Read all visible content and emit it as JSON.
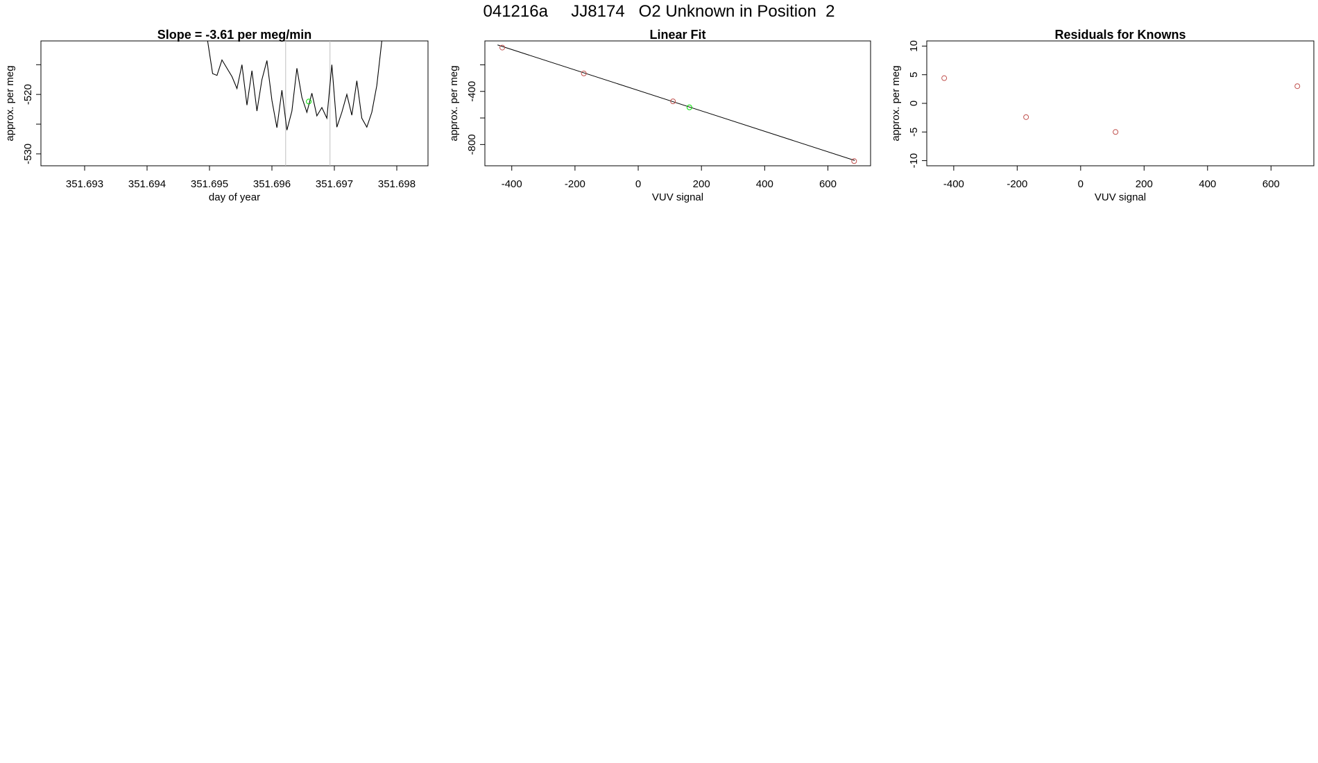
{
  "title": "041216a     JJ8174   O2 Unknown in Position  2",
  "colors": {
    "line": "#000000",
    "frame": "#000000",
    "known_point": "#c0504d",
    "unknown_point": "#00e000",
    "vline": "#bebebe",
    "fit_line": "#000000"
  },
  "chart_data": [
    {
      "type": "line",
      "title": "Slope =  -3.61  per meg/min",
      "xlabel": "day of year",
      "ylabel": "approx. per meg",
      "xlim": [
        351.6923,
        351.6985
      ],
      "ylim": [
        -532,
        -511
      ],
      "xticks": [
        351.693,
        351.694,
        351.695,
        351.696,
        351.697,
        351.698
      ],
      "xtick_labels": [
        "351.693",
        "351.694",
        "351.695",
        "351.696",
        "351.697",
        "351.698"
      ],
      "yticks": [
        -530,
        -525,
        -520,
        -515
      ],
      "ytick_labels": [
        "-530",
        "",
        "-520",
        ""
      ],
      "vlines": [
        351.69622,
        351.69693
      ],
      "series": [
        {
          "x": [
            351.69497,
            351.69505,
            351.69512,
            351.6952,
            351.69528,
            351.69536,
            351.69544,
            351.69552,
            351.6956,
            351.69568,
            351.69576,
            351.69584,
            351.69592,
            351.696,
            351.69608,
            351.69616,
            351.69624,
            351.69632,
            351.6964,
            351.69648,
            351.69656,
            351.69664,
            351.69672,
            351.6968,
            351.69688,
            351.69696,
            351.69704,
            351.69712,
            351.6972,
            351.69728,
            351.69736,
            351.69744,
            351.69752,
            351.6976,
            351.69768,
            351.69776
          ],
          "y": [
            -511,
            -516.5,
            -516.8,
            -514.2,
            -515.6,
            -517.0,
            -519.0,
            -515.0,
            -521.8,
            -516.0,
            -522.8,
            -517.5,
            -514.3,
            -521.0,
            -525.6,
            -519.3,
            -526.0,
            -522.8,
            -515.6,
            -520.5,
            -523.0,
            -519.8,
            -523.6,
            -522.2,
            -524.0,
            -515.0,
            -525.5,
            -523.0,
            -520.0,
            -523.5,
            -517.7,
            -524.0,
            -525.5,
            -523.0,
            -518.5,
            -511
          ]
        }
      ],
      "points": [
        {
          "x": 351.69659,
          "y": -521.2,
          "kind": "unknown"
        }
      ]
    },
    {
      "type": "scatter",
      "title": "Linear Fit",
      "xlabel": "VUV signal",
      "ylabel": "approx. per meg",
      "xlim": [
        -485,
        735
      ],
      "ylim": [
        -960,
        -20
      ],
      "xticks": [
        -400,
        -200,
        0,
        200,
        400,
        600
      ],
      "xtick_labels": [
        "-400",
        "-200",
        "0",
        "200",
        "400",
        "600"
      ],
      "yticks": [
        -800,
        -600,
        -400,
        -200
      ],
      "ytick_labels": [
        "-800",
        "",
        "-400",
        ""
      ],
      "fit_line": {
        "x": [
          -445,
          685
        ],
        "y": [
          -50,
          -920
        ]
      },
      "points": [
        {
          "x": -430,
          "y": -70,
          "kind": "known"
        },
        {
          "x": -172,
          "y": -265,
          "kind": "known"
        },
        {
          "x": 110,
          "y": -475,
          "kind": "known"
        },
        {
          "x": 162,
          "y": -520,
          "kind": "unknown"
        },
        {
          "x": 683,
          "y": -925,
          "kind": "known"
        }
      ]
    },
    {
      "type": "scatter",
      "title": "Residuals for Knowns",
      "xlabel": "VUV signal",
      "ylabel": "approx. per meg",
      "xlim": [
        -485,
        735
      ],
      "ylim": [
        -10.9,
        10.9
      ],
      "xticks": [
        -400,
        -200,
        0,
        200,
        400,
        600
      ],
      "xtick_labels": [
        "-400",
        "-200",
        "0",
        "200",
        "400",
        "600"
      ],
      "yticks": [
        -10,
        -5,
        0,
        5,
        10
      ],
      "ytick_labels": [
        "-10",
        "-5",
        "0",
        "5",
        "10"
      ],
      "points": [
        {
          "x": -430,
          "y": 4.4,
          "kind": "known"
        },
        {
          "x": -172,
          "y": -2.4,
          "kind": "known"
        },
        {
          "x": 110,
          "y": -5.0,
          "kind": "known"
        },
        {
          "x": 683,
          "y": 3.0,
          "kind": "known"
        }
      ]
    }
  ]
}
